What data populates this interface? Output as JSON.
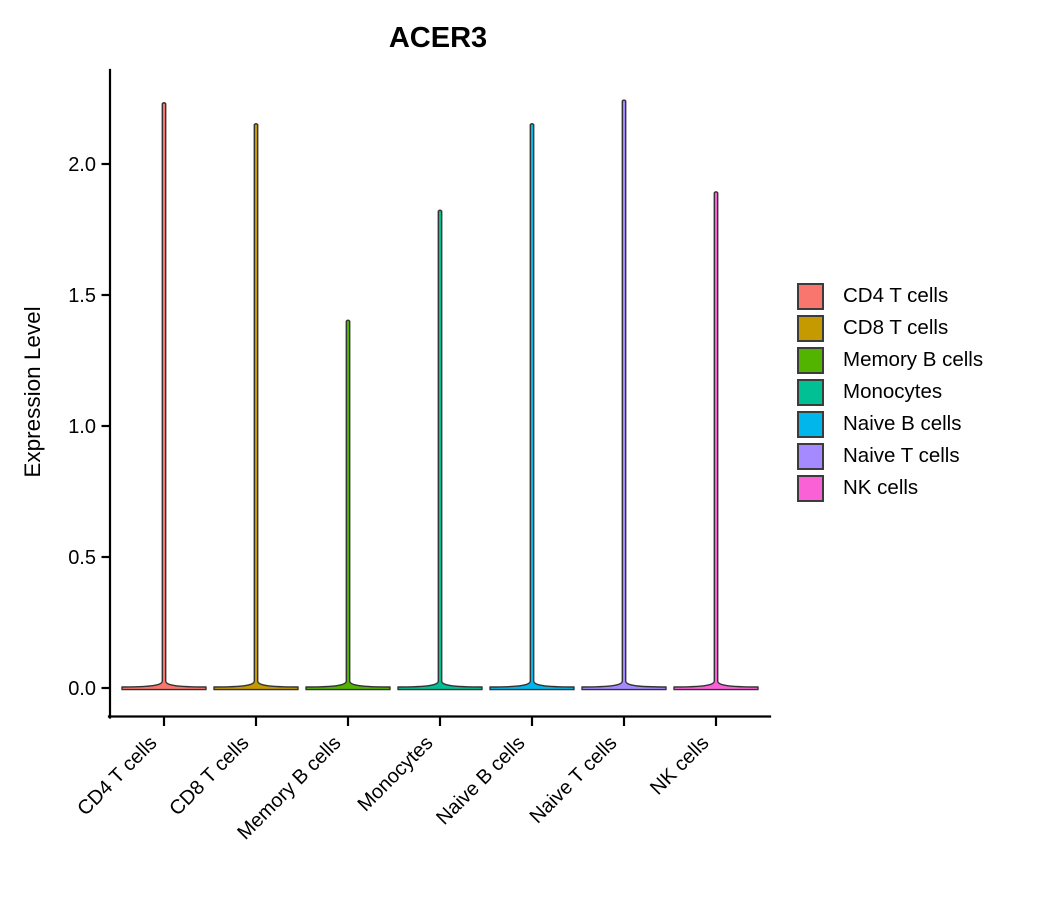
{
  "chart_data": {
    "type": "violin",
    "title": "ACER3",
    "xlabel": "",
    "ylabel": "Expression Level",
    "categories": [
      "CD4 T cells",
      "CD8 T cells",
      "Memory B cells",
      "Monocytes",
      "Naive B cells",
      "Naive T cells",
      "NK cells"
    ],
    "colors": [
      "#F8766D",
      "#C49A00",
      "#53B400",
      "#00C094",
      "#00B6EB",
      "#A58AFF",
      "#FB61D7"
    ],
    "violins": [
      {
        "category": "CD4 T cells",
        "min": 0.0,
        "max": 2.23,
        "density_peak_at": 0.0
      },
      {
        "category": "CD8 T cells",
        "min": 0.0,
        "max": 2.15,
        "density_peak_at": 0.0
      },
      {
        "category": "Memory B cells",
        "min": 0.0,
        "max": 1.4,
        "density_peak_at": 0.0
      },
      {
        "category": "Monocytes",
        "min": 0.0,
        "max": 1.82,
        "density_peak_at": 0.0
      },
      {
        "category": "Naive B cells",
        "min": 0.0,
        "max": 2.15,
        "density_peak_at": 0.0
      },
      {
        "category": "Naive T cells",
        "min": 0.0,
        "max": 2.24,
        "density_peak_at": 0.0
      },
      {
        "category": "NK cells",
        "min": 0.0,
        "max": 1.89,
        "density_peak_at": 0.0
      }
    ],
    "violin_shape": "wide flat base at 0 with very narrow vertical tail rising to max",
    "y_ticks": [
      "0.0",
      "0.5",
      "1.0",
      "1.5",
      "2.0"
    ],
    "ylim": [
      -0.11,
      2.36
    ],
    "grid": "off",
    "legend_position": "right",
    "x_label_rotation": 45,
    "outline_color": "#333333",
    "axis_color": "#000000"
  },
  "legend": {
    "items": [
      {
        "label": "CD4 T cells",
        "color": "#F8766D"
      },
      {
        "label": "CD8 T cells",
        "color": "#C49A00"
      },
      {
        "label": "Memory B cells",
        "color": "#53B400"
      },
      {
        "label": "Monocytes",
        "color": "#00C094"
      },
      {
        "label": "Naive B cells",
        "color": "#00B6EB"
      },
      {
        "label": "Naive T cells",
        "color": "#A58AFF"
      },
      {
        "label": "NK cells",
        "color": "#FB61D7"
      }
    ]
  }
}
